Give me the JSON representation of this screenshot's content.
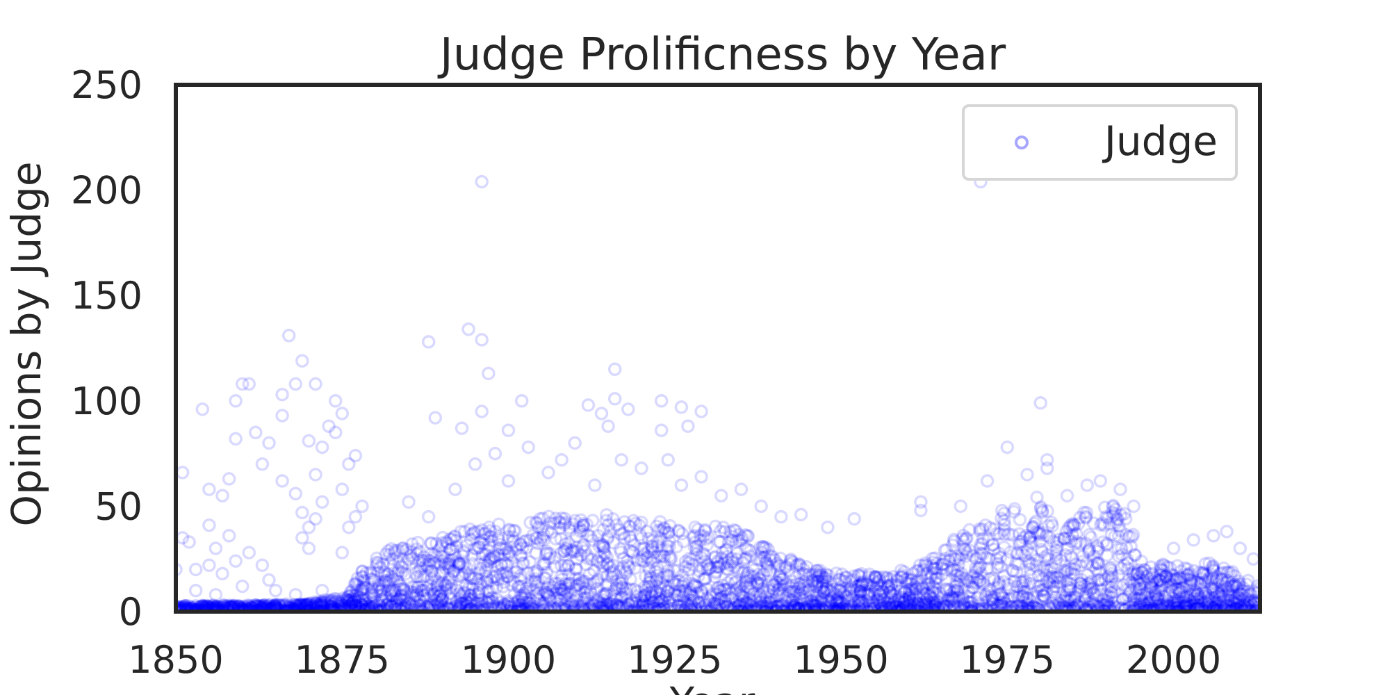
{
  "chart_data": {
    "type": "scatter",
    "title": "Judge Prolificness by Year",
    "xlabel": "Year",
    "ylabel": "Opinions by Judge",
    "xlim": [
      1850,
      2013
    ],
    "ylim": [
      0,
      250
    ],
    "xticks": [
      1850,
      1875,
      1900,
      1925,
      1950,
      1975,
      2000
    ],
    "yticks": [
      0,
      50,
      100,
      150,
      200,
      250
    ],
    "grid": false,
    "legend": {
      "placement": "top-right"
    },
    "series": [
      {
        "name": "Judge",
        "color": "#0000ff",
        "marker": "open-circle",
        "alpha": 0.15,
        "points": [
          [
            1896,
            204
          ],
          [
            1971,
            204
          ],
          [
            1867,
            131
          ],
          [
            1894,
            134
          ],
          [
            1896,
            129
          ],
          [
            1888,
            128
          ],
          [
            1869,
            119
          ],
          [
            1897,
            113
          ],
          [
            1916,
            115
          ],
          [
            1860,
            108
          ],
          [
            1861,
            108
          ],
          [
            1866,
            103
          ],
          [
            1868,
            108
          ],
          [
            1871,
            108
          ],
          [
            1859,
            100
          ],
          [
            1874,
            100
          ],
          [
            1902,
            100
          ],
          [
            1916,
            101
          ],
          [
            1923,
            100
          ],
          [
            1926,
            97
          ],
          [
            1929,
            95
          ],
          [
            1912,
            98
          ],
          [
            1914,
            94
          ],
          [
            1918,
            96
          ],
          [
            1980,
            99
          ],
          [
            1854,
            96
          ],
          [
            1866,
            93
          ],
          [
            1875,
            94
          ],
          [
            1889,
            92
          ],
          [
            1896,
            95
          ],
          [
            1873,
            88
          ],
          [
            1893,
            87
          ],
          [
            1900,
            86
          ],
          [
            1915,
            88
          ],
          [
            1927,
            88
          ],
          [
            1923,
            86
          ],
          [
            1859,
            82
          ],
          [
            1862,
            85
          ],
          [
            1864,
            80
          ],
          [
            1870,
            81
          ],
          [
            1874,
            85
          ],
          [
            1872,
            78
          ],
          [
            1851,
            66
          ],
          [
            1858,
            63
          ],
          [
            1863,
            70
          ],
          [
            1866,
            62
          ],
          [
            1876,
            70
          ],
          [
            1877,
            74
          ],
          [
            1855,
            58
          ],
          [
            1857,
            55
          ],
          [
            1868,
            56
          ],
          [
            1871,
            65
          ],
          [
            1872,
            52
          ],
          [
            1875,
            58
          ],
          [
            1851,
            35
          ],
          [
            1852,
            33
          ],
          [
            1855,
            41
          ],
          [
            1858,
            36
          ],
          [
            1856,
            30
          ],
          [
            1853,
            20
          ],
          [
            1855,
            22
          ],
          [
            1857,
            18
          ],
          [
            1859,
            24
          ],
          [
            1861,
            28
          ],
          [
            1863,
            22
          ],
          [
            1864,
            15
          ],
          [
            1869,
            47
          ],
          [
            1870,
            40
          ],
          [
            1871,
            44
          ],
          [
            1877,
            45
          ],
          [
            1878,
            50
          ],
          [
            1876,
            40
          ],
          [
            1869,
            35
          ],
          [
            1870,
            30
          ],
          [
            1875,
            28
          ],
          [
            1860,
            12
          ],
          [
            1865,
            10
          ],
          [
            1868,
            8
          ],
          [
            1872,
            10
          ],
          [
            1850,
            20
          ],
          [
            1853,
            10
          ],
          [
            1856,
            8
          ],
          [
            1885,
            52
          ],
          [
            1888,
            45
          ],
          [
            1892,
            58
          ],
          [
            1895,
            70
          ],
          [
            1898,
            75
          ],
          [
            1900,
            62
          ],
          [
            1903,
            78
          ],
          [
            1906,
            66
          ],
          [
            1908,
            72
          ],
          [
            1910,
            80
          ],
          [
            1913,
            60
          ],
          [
            1917,
            72
          ],
          [
            1920,
            68
          ],
          [
            1924,
            72
          ],
          [
            1926,
            60
          ],
          [
            1929,
            64
          ],
          [
            1932,
            55
          ],
          [
            1935,
            58
          ],
          [
            1938,
            50
          ],
          [
            1941,
            45
          ],
          [
            1944,
            46
          ],
          [
            1948,
            40
          ],
          [
            1952,
            44
          ],
          [
            1962,
            52
          ],
          [
            1962,
            48
          ],
          [
            1968,
            50
          ],
          [
            1972,
            62
          ],
          [
            1975,
            78
          ],
          [
            1978,
            65
          ],
          [
            1981,
            72
          ],
          [
            1981,
            68
          ],
          [
            1984,
            55
          ],
          [
            1987,
            60
          ],
          [
            1989,
            62
          ],
          [
            1992,
            58
          ],
          [
            1994,
            50
          ],
          [
            2000,
            30
          ],
          [
            2003,
            34
          ],
          [
            2006,
            36
          ],
          [
            2008,
            38
          ],
          [
            2010,
            30
          ],
          [
            2012,
            25
          ]
        ],
        "dense_band": {
          "x": [
            1850,
            1860,
            1870,
            1876,
            1878,
            1882,
            1890,
            1895,
            1900,
            1905,
            1910,
            1915,
            1920,
            1925,
            1930,
            1935,
            1940,
            1945,
            1950,
            1955,
            1960,
            1963,
            1966,
            1970,
            1975,
            1980,
            1983,
            1986,
            1990,
            1993,
            1995,
            2000,
            2005,
            2010,
            2013
          ],
          "top": [
            3,
            3,
            4,
            8,
            20,
            30,
            36,
            40,
            42,
            45,
            46,
            46,
            44,
            42,
            42,
            38,
            28,
            22,
            18,
            18,
            20,
            24,
            33,
            40,
            50,
            55,
            35,
            48,
            50,
            52,
            24,
            22,
            24,
            18,
            12
          ]
        }
      }
    ]
  }
}
